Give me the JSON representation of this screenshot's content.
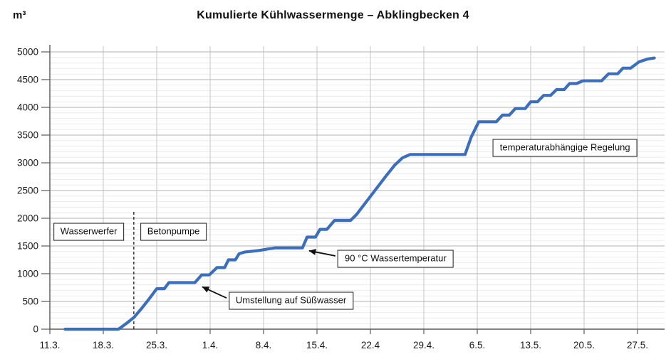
{
  "header": {
    "title": "Kumulierte Kühlwassermenge – Abklingbecken 4",
    "y_unit_label": "m³"
  },
  "chart_data": {
    "type": "line",
    "title": "Kumulierte Kühlwassermenge – Abklingbecken 4",
    "ylabel": "m³",
    "xlabel": "",
    "ylim": [
      0,
      5000
    ],
    "y_tick_step": 500,
    "y_minor_step": 100,
    "grid": "on",
    "legend": "none",
    "x_ticks": [
      {
        "label": "11.3.",
        "day": 0
      },
      {
        "label": "18.3.",
        "day": 7
      },
      {
        "label": "25.3.",
        "day": 14
      },
      {
        "label": "1.4.",
        "day": 21
      },
      {
        "label": "8.4.",
        "day": 28
      },
      {
        "label": "15.4.",
        "day": 35
      },
      {
        "label": "22.4",
        "day": 42
      },
      {
        "label": "29.4.",
        "day": 49
      },
      {
        "label": "6.5.",
        "day": 56
      },
      {
        "label": "13.5.",
        "day": 63
      },
      {
        "label": "20.5.",
        "day": 70
      },
      {
        "label": "27.5.",
        "day": 77
      }
    ],
    "series": [
      {
        "name": "Kumulierte Kühlwassermenge (m³)",
        "color": "#3B6FBE",
        "points": [
          [
            2,
            0
          ],
          [
            9,
            0
          ],
          [
            10,
            100
          ],
          [
            11,
            210
          ],
          [
            12,
            370
          ],
          [
            13,
            545
          ],
          [
            14,
            730
          ],
          [
            15,
            730
          ],
          [
            15.6,
            840
          ],
          [
            19,
            840
          ],
          [
            19.9,
            980
          ],
          [
            20.9,
            980
          ],
          [
            21.9,
            1110
          ],
          [
            22.9,
            1110
          ],
          [
            23.4,
            1250
          ],
          [
            24.3,
            1250
          ],
          [
            24.8,
            1360
          ],
          [
            25.5,
            1390
          ],
          [
            26.5,
            1405
          ],
          [
            27.5,
            1420
          ],
          [
            28.5,
            1445
          ],
          [
            29.5,
            1465
          ],
          [
            33.1,
            1465
          ],
          [
            33.7,
            1660
          ],
          [
            34.8,
            1660
          ],
          [
            35.4,
            1800
          ],
          [
            36.3,
            1800
          ],
          [
            37.3,
            1960
          ],
          [
            39.4,
            1960
          ],
          [
            40.2,
            2070
          ],
          [
            41.2,
            2250
          ],
          [
            42.2,
            2430
          ],
          [
            43.2,
            2610
          ],
          [
            44.2,
            2790
          ],
          [
            45.2,
            2960
          ],
          [
            46.2,
            3090
          ],
          [
            47.2,
            3150
          ],
          [
            54.4,
            3150
          ],
          [
            55.2,
            3460
          ],
          [
            56.2,
            3740
          ],
          [
            58.5,
            3740
          ],
          [
            59.3,
            3860
          ],
          [
            60.2,
            3860
          ],
          [
            61,
            3980
          ],
          [
            62.3,
            3980
          ],
          [
            63,
            4100
          ],
          [
            63.9,
            4100
          ],
          [
            64.7,
            4215
          ],
          [
            65.6,
            4215
          ],
          [
            66.4,
            4320
          ],
          [
            67.4,
            4320
          ],
          [
            68.1,
            4430
          ],
          [
            69,
            4430
          ],
          [
            69.9,
            4480
          ],
          [
            72.3,
            4480
          ],
          [
            73.2,
            4605
          ],
          [
            74.4,
            4605
          ],
          [
            75.1,
            4708
          ],
          [
            76.1,
            4708
          ],
          [
            77.2,
            4820
          ],
          [
            78.3,
            4870
          ],
          [
            79.2,
            4890
          ]
        ]
      }
    ],
    "event_line": {
      "day": 11,
      "from_value": 0,
      "to_value": 2130,
      "style": "dashed",
      "color": "#1c1c1c"
    },
    "annotations": [
      {
        "label": "Wasserwerfer",
        "day": 5.1,
        "value": 1760,
        "boxed": true
      },
      {
        "label": "Betonpumpe",
        "day": 16.2,
        "value": 1760,
        "boxed": true
      },
      {
        "label": "Umstellung auf Süßwasser",
        "day": 31.6,
        "value": 510,
        "boxed": true,
        "arrow_to": {
          "day": 19.4,
          "value": 790
        }
      },
      {
        "label": "90 °C Wassertemperatur",
        "day": 45.3,
        "value": 1270,
        "boxed": true,
        "arrow_to": {
          "day": 33.4,
          "value": 1440
        }
      },
      {
        "label": "temperaturabhängige Regelung",
        "day": 67.5,
        "value": 3270,
        "boxed": true
      }
    ],
    "colors": {
      "line": "#3B6FBE",
      "grid_major": "#b3b3b3",
      "grid_minor": "#ececec",
      "grid_vertical": "#c6c6c6",
      "axis": "#5a5a5a",
      "annotation_border": "#1c1c1c",
      "background": "#ffffff"
    }
  }
}
